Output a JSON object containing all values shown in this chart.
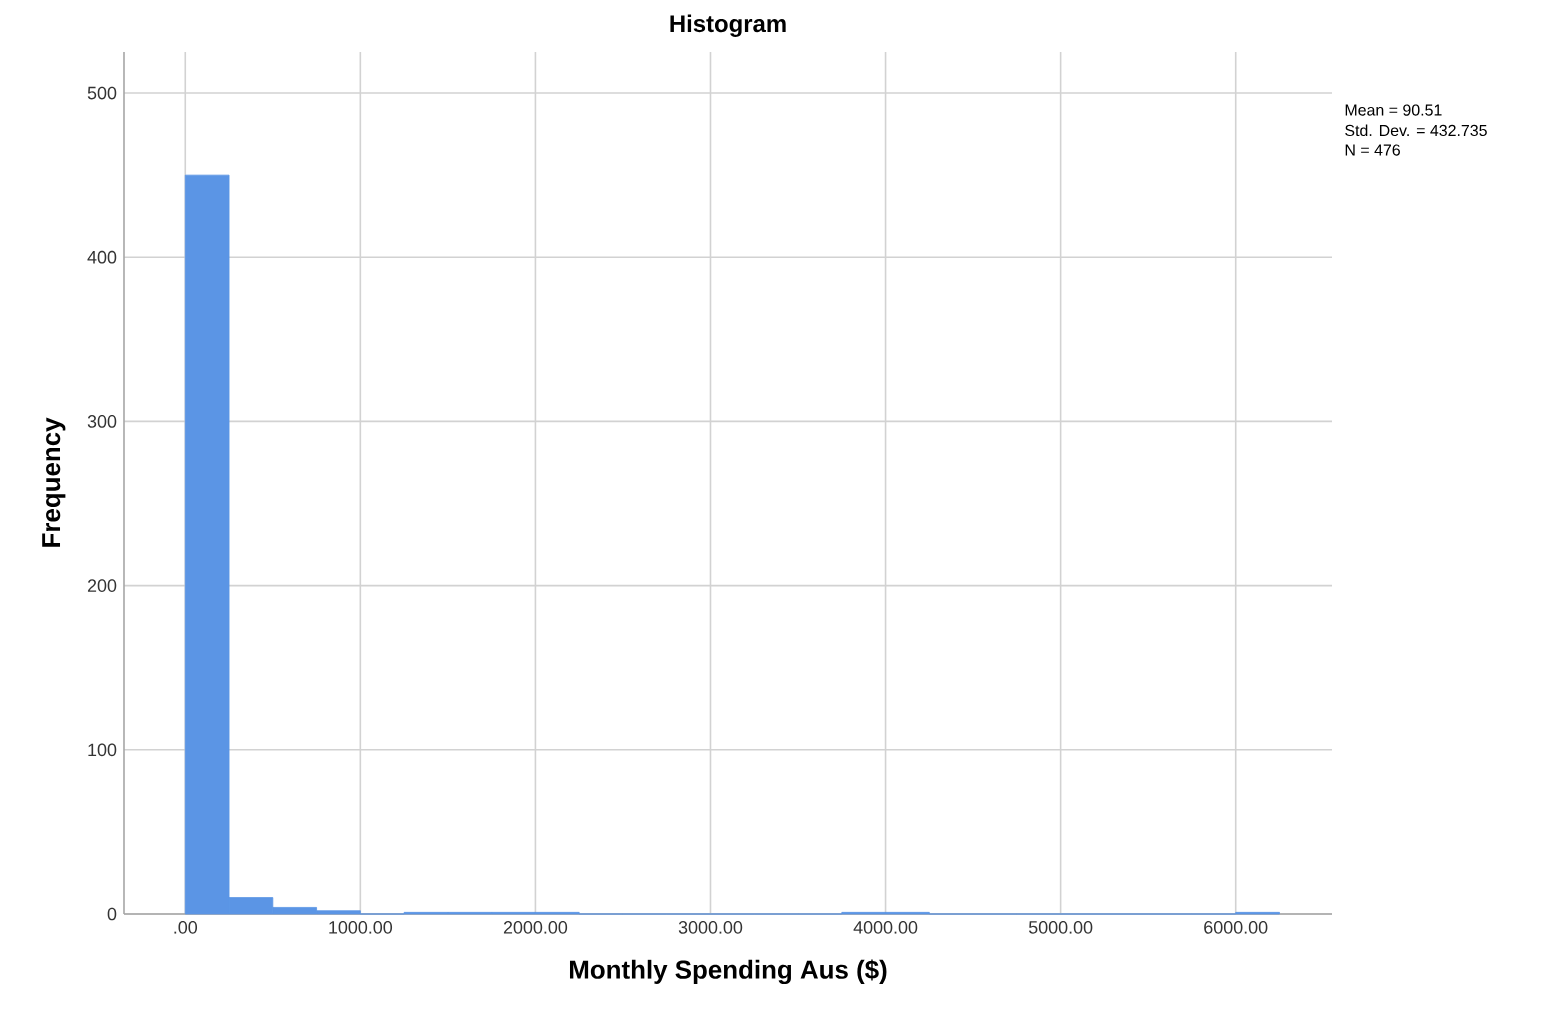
{
  "chart_data": {
    "type": "histogram",
    "title": "Histogram",
    "xlabel": "Monthly Spending Aus ($)",
    "ylabel": "Frequency",
    "bins": [
      0,
      250,
      500,
      750,
      1000,
      1250,
      1500,
      1750,
      2000,
      2250,
      2500,
      2750,
      3000,
      3250,
      3500,
      3750,
      4000,
      4250,
      4500,
      4750,
      5000,
      5250,
      5500,
      5750,
      6000,
      6250
    ],
    "values": [
      450,
      10,
      4,
      2,
      0,
      1,
      1,
      1,
      1,
      0,
      0,
      0,
      0,
      0,
      0,
      1,
      1,
      0,
      0,
      0,
      0,
      0,
      0,
      0,
      1
    ],
    "color": "#5b95e5",
    "xlim": [
      -350,
      6550
    ],
    "ylim": [
      0,
      525
    ],
    "xticks": [
      {
        "value": 0,
        "label": ".00"
      },
      {
        "value": 1000,
        "label": "1000.00"
      },
      {
        "value": 2000,
        "label": "2000.00"
      },
      {
        "value": 3000,
        "label": "3000.00"
      },
      {
        "value": 4000,
        "label": "4000.00"
      },
      {
        "value": 5000,
        "label": "5000.00"
      },
      {
        "value": 6000,
        "label": "6000.00"
      }
    ],
    "yticks": [
      0,
      100,
      200,
      300,
      400,
      500
    ],
    "grid": true,
    "annotations": [
      "Mean = 90.51",
      "Std. Dev. = 432.735",
      "N = 476"
    ]
  }
}
